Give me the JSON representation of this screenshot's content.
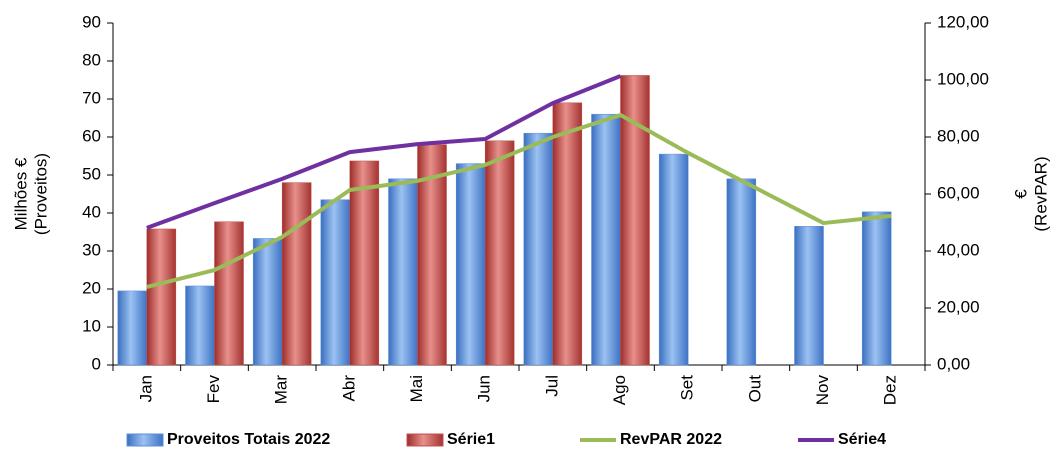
{
  "chart_data": {
    "type": "bar-line",
    "y_label": [
      "Milhões €",
      "(Proveitos)"
    ],
    "y2_label": [
      "€",
      "(RevPAR)"
    ],
    "categories": [
      "Jan",
      "Fev",
      "Mar",
      "Abr",
      "Mai",
      "Jun",
      "Jul",
      "Ago",
      "Set",
      "Out",
      "Nov",
      "Dez"
    ],
    "ylim": [
      0,
      90
    ],
    "yticks": [
      0,
      10,
      20,
      30,
      40,
      50,
      60,
      70,
      80,
      90
    ],
    "y2lim": [
      0,
      120
    ],
    "y2ticks": [
      {
        "value": 0,
        "label": "0,00"
      },
      {
        "value": 20,
        "label": "20,00"
      },
      {
        "value": 40,
        "label": "40,00"
      },
      {
        "value": 60,
        "label": "60,00"
      },
      {
        "value": 80,
        "label": "80,00"
      },
      {
        "value": 100,
        "label": "100,00"
      },
      {
        "value": 120,
        "label": "120,00"
      }
    ],
    "grid": false,
    "legend": "bottom",
    "series": [
      {
        "name": "Proveitos Totais 2022",
        "type": "bar",
        "color": "#5b8fd6",
        "values": [
          19.5,
          20.8,
          33.3,
          43.5,
          49,
          53,
          61,
          66,
          55.5,
          49,
          36.5,
          40.3
        ]
      },
      {
        "name": "Série1",
        "type": "bar",
        "color": "#c0504d",
        "values": [
          35.8,
          37.7,
          48,
          53.7,
          58,
          59,
          69,
          76.2,
          null,
          null,
          null,
          null
        ]
      },
      {
        "name": "RevPAR 2022",
        "type": "line",
        "axis": "y2",
        "color": "#9bbb59",
        "values": [
          27.4,
          33.3,
          44.9,
          61.4,
          64.6,
          70.2,
          80,
          87.7,
          74.4,
          62.1,
          49.8,
          52.3
        ]
      },
      {
        "name": "Série4",
        "type": "line",
        "axis": "y2",
        "color": "#7030a0",
        "values": [
          48.1,
          56.8,
          65.3,
          74.7,
          77.5,
          79.3,
          91.9,
          101.4,
          null,
          null,
          null,
          null
        ]
      }
    ]
  }
}
